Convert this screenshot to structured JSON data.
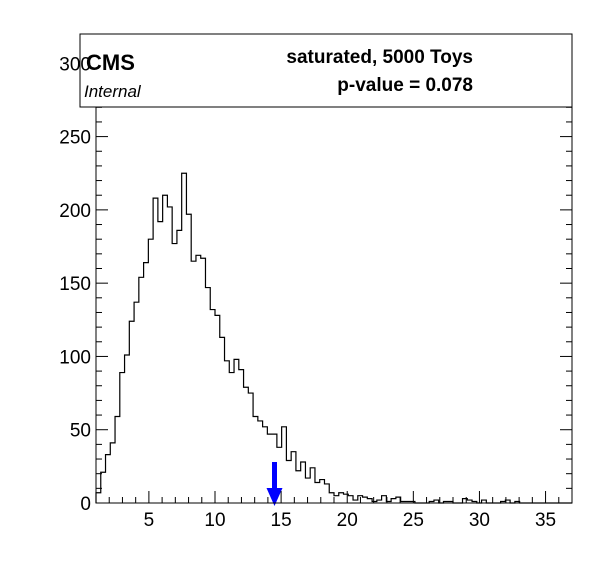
{
  "chart_data": {
    "type": "histogram",
    "title": "",
    "xlabel": "",
    "ylabel": "",
    "xlim": [
      1,
      37
    ],
    "ylim": [
      0,
      320
    ],
    "grid": false,
    "bin_start": 1,
    "bin_width": 0.36,
    "counts": [
      7,
      21,
      33,
      41,
      59,
      89,
      101,
      124,
      137,
      154,
      164,
      180,
      208,
      192,
      210,
      202,
      177,
      186,
      225,
      197,
      165,
      169,
      167,
      147,
      132,
      128,
      113,
      97,
      89,
      98,
      91,
      79,
      75,
      59,
      56,
      52,
      47,
      47,
      38,
      52,
      29,
      35,
      22,
      28,
      17,
      24,
      14,
      16,
      13,
      7,
      5,
      7,
      6,
      5,
      2,
      5,
      4,
      3,
      1,
      2,
      5,
      1,
      3,
      4,
      1,
      1,
      1,
      0,
      0,
      0,
      1,
      2,
      0,
      1,
      1,
      0,
      0,
      3,
      2,
      1,
      0,
      2,
      0,
      0,
      0,
      1,
      2,
      0,
      1,
      0,
      0,
      0,
      0,
      0,
      0,
      0,
      0,
      0,
      0,
      0
    ],
    "observed_value": 14.5,
    "x_ticks": [
      5,
      10,
      15,
      20,
      25,
      30,
      35
    ],
    "y_ticks": [
      0,
      50,
      100,
      150,
      200,
      250,
      300
    ],
    "legend": {
      "line1": "saturated, 5000 Toys",
      "line2": "p-value = 0.078",
      "position": "top"
    },
    "experiment_label": "CMS",
    "status_label": "Internal",
    "colors": {
      "histogram": "#000000",
      "arrow": "#0000ff",
      "frame": "#000000"
    }
  }
}
